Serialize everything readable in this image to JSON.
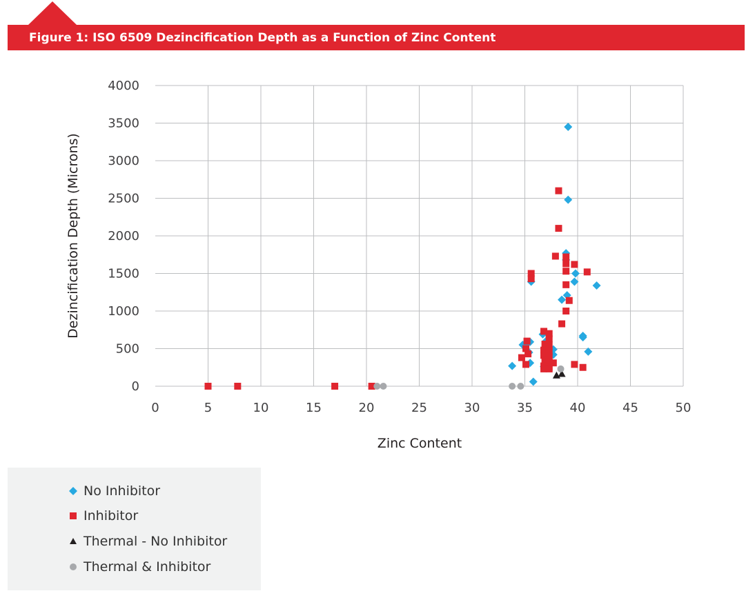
{
  "figure": {
    "title": "Figure 1:  ISO 6509 Dezincification Depth as a Function of Zinc Content"
  },
  "colors": {
    "banner": "#e0262f",
    "no_inhibitor": "#27a9e1",
    "inhibitor": "#e0262f",
    "thermal_no_inhibitor": "#231f20",
    "thermal_inhibitor": "#a7a9ac",
    "grid": "#bcbec0",
    "legend_bg": "#f1f2f2"
  },
  "chart_data": {
    "type": "scatter",
    "title": "",
    "xlabel": "Zinc Content",
    "ylabel": "Dezincification Depth (Microns)",
    "xlim": [
      0,
      50
    ],
    "ylim": [
      0,
      4000
    ],
    "xticks": [
      0,
      5,
      10,
      15,
      20,
      25,
      30,
      35,
      40,
      45,
      50
    ],
    "yticks": [
      0,
      500,
      1000,
      1500,
      2000,
      2500,
      3000,
      3500,
      4000
    ],
    "grid": true,
    "legend_position": "bottom-left",
    "series": [
      {
        "name": "No Inhibitor",
        "marker": "diamond",
        "color": "#27a9e1",
        "points": [
          [
            39.1,
            3450
          ],
          [
            39.1,
            2480
          ],
          [
            38.9,
            1770
          ],
          [
            38.9,
            1680
          ],
          [
            39.8,
            1500
          ],
          [
            39.7,
            1390
          ],
          [
            39.0,
            1210
          ],
          [
            38.5,
            1150
          ],
          [
            41.8,
            1340
          ],
          [
            35.6,
            1390
          ],
          [
            40.5,
            670
          ],
          [
            40.5,
            650
          ],
          [
            41.0,
            460
          ],
          [
            34.8,
            550
          ],
          [
            35.2,
            560
          ],
          [
            35.5,
            590
          ],
          [
            35.4,
            450
          ],
          [
            35.5,
            310
          ],
          [
            36.7,
            690
          ],
          [
            37.0,
            600
          ],
          [
            37.3,
            480
          ],
          [
            37.7,
            490
          ],
          [
            37.7,
            420
          ],
          [
            36.8,
            260
          ],
          [
            33.8,
            270
          ],
          [
            35.8,
            60
          ]
        ]
      },
      {
        "name": "Inhibitor",
        "marker": "square",
        "color": "#e0262f",
        "points": [
          [
            5.0,
            0
          ],
          [
            7.8,
            0
          ],
          [
            17.0,
            0
          ],
          [
            20.5,
            0
          ],
          [
            38.2,
            2600
          ],
          [
            38.2,
            2100
          ],
          [
            37.9,
            1730
          ],
          [
            38.9,
            1720
          ],
          [
            38.9,
            1630
          ],
          [
            38.9,
            1530
          ],
          [
            39.7,
            1620
          ],
          [
            40.9,
            1520
          ],
          [
            35.6,
            1500
          ],
          [
            35.6,
            1430
          ],
          [
            38.9,
            1350
          ],
          [
            39.2,
            1140
          ],
          [
            38.9,
            1000
          ],
          [
            38.5,
            830
          ],
          [
            36.8,
            730
          ],
          [
            37.3,
            700
          ],
          [
            37.3,
            630
          ],
          [
            35.2,
            600
          ],
          [
            36.9,
            560
          ],
          [
            37.3,
            550
          ],
          [
            35.1,
            500
          ],
          [
            36.8,
            480
          ],
          [
            37.3,
            460
          ],
          [
            35.3,
            430
          ],
          [
            36.8,
            410
          ],
          [
            37.3,
            390
          ],
          [
            34.7,
            380
          ],
          [
            36.9,
            350
          ],
          [
            37.3,
            330
          ],
          [
            37.7,
            310
          ],
          [
            35.1,
            290
          ],
          [
            39.7,
            290
          ],
          [
            36.8,
            270
          ],
          [
            37.3,
            250
          ],
          [
            40.5,
            250
          ],
          [
            36.8,
            230
          ],
          [
            37.3,
            230
          ]
        ]
      },
      {
        "name": "Thermal - No Inhibitor",
        "marker": "triangle",
        "color": "#231f20",
        "points": [
          [
            38.0,
            140
          ],
          [
            38.5,
            160
          ]
        ]
      },
      {
        "name": "Thermal & Inhibitor",
        "marker": "circle",
        "color": "#a7a9ac",
        "points": [
          [
            21.0,
            0
          ],
          [
            21.6,
            0
          ],
          [
            33.8,
            0
          ],
          [
            34.6,
            0
          ],
          [
            38.4,
            230
          ]
        ]
      }
    ]
  }
}
